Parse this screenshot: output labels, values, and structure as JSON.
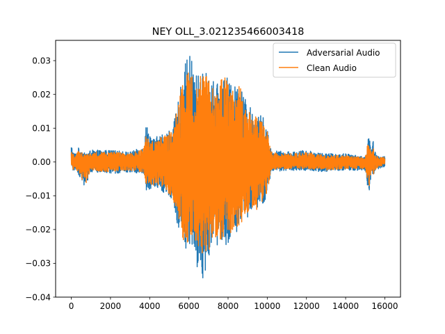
{
  "chart_data": {
    "type": "line",
    "title": "NEY OLL_3.021235466003418",
    "xlabel": "",
    "ylabel": "",
    "xlim": [
      -800,
      16800
    ],
    "ylim": [
      -0.04,
      0.036
    ],
    "xticks": [
      0,
      2000,
      4000,
      6000,
      8000,
      10000,
      12000,
      14000,
      16000
    ],
    "xtick_labels": [
      "0",
      "2000",
      "4000",
      "6000",
      "8000",
      "10000",
      "12000",
      "14000",
      "16000"
    ],
    "yticks": [
      -0.04,
      -0.03,
      -0.02,
      -0.01,
      0.0,
      0.01,
      0.02,
      0.03
    ],
    "ytick_labels": [
      "−0.04",
      "−0.03",
      "−0.02",
      "−0.01",
      "0.00",
      "0.01",
      "0.02",
      "0.03"
    ],
    "grid": false,
    "legend_position": "upper right",
    "num_samples": 16000,
    "series": [
      {
        "name": "Adversarial Audio",
        "color": "#1f77b4",
        "envelope": {
          "x": [
            0,
            100,
            200,
            400,
            700,
            1000,
            2000,
            3000,
            3700,
            3800,
            4200,
            4800,
            5200,
            5500,
            5800,
            6100,
            6400,
            6700,
            7000,
            7400,
            7800,
            8200,
            8600,
            9000,
            9400,
            9800,
            10000,
            10200,
            11000,
            12000,
            13000,
            14000,
            15000,
            15200,
            15300,
            15400,
            15500,
            15700,
            16000
          ],
          "upper": [
            0.0055,
            0.003,
            0.0025,
            0.0045,
            0.0025,
            0.0035,
            0.0035,
            0.003,
            0.0045,
            0.0115,
            0.007,
            0.009,
            0.0105,
            0.0195,
            0.029,
            0.0325,
            0.026,
            0.0265,
            0.027,
            0.0225,
            0.027,
            0.022,
            0.0235,
            0.017,
            0.0145,
            0.0135,
            0.01,
            0.0035,
            0.003,
            0.0035,
            0.0025,
            0.0025,
            0.0015,
            0.0085,
            0.003,
            0.0065,
            0.003,
            0.0015,
            0.002
          ],
          "lower": [
            -0.0015,
            -0.003,
            -0.002,
            -0.004,
            -0.0075,
            -0.003,
            -0.0035,
            -0.003,
            -0.0035,
            -0.0085,
            -0.0075,
            -0.0095,
            -0.012,
            -0.021,
            -0.0255,
            -0.027,
            -0.031,
            -0.0365,
            -0.028,
            -0.025,
            -0.025,
            -0.023,
            -0.02,
            -0.017,
            -0.015,
            -0.013,
            -0.01,
            -0.003,
            -0.0025,
            -0.0025,
            -0.003,
            -0.0025,
            -0.0025,
            -0.011,
            -0.0035,
            -0.0045,
            -0.003,
            -0.002,
            -0.0015
          ]
        }
      },
      {
        "name": "Clean Audio",
        "color": "#ff7f0e",
        "envelope": {
          "x": [
            0,
            100,
            200,
            400,
            700,
            1000,
            2000,
            3000,
            3700,
            3800,
            4200,
            4800,
            5200,
            5500,
            5800,
            6100,
            6400,
            6700,
            7000,
            7400,
            7800,
            8200,
            8600,
            9000,
            9400,
            9800,
            10000,
            10200,
            11000,
            12000,
            13000,
            14000,
            15000,
            15200,
            15300,
            15400,
            15500,
            15700,
            16000
          ],
          "upper": [
            0.003,
            0.0025,
            0.002,
            0.004,
            0.002,
            0.003,
            0.003,
            0.0025,
            0.004,
            0.0075,
            0.006,
            0.008,
            0.0095,
            0.0185,
            0.027,
            0.028,
            0.0255,
            0.0255,
            0.026,
            0.022,
            0.026,
            0.021,
            0.0225,
            0.016,
            0.0135,
            0.0125,
            0.0095,
            0.003,
            0.0025,
            0.003,
            0.002,
            0.002,
            0.0012,
            0.008,
            0.0025,
            0.0055,
            0.0025,
            0.0012,
            0.0015
          ],
          "lower": [
            -0.001,
            -0.0025,
            -0.0018,
            -0.0035,
            -0.007,
            -0.0025,
            -0.003,
            -0.0025,
            -0.003,
            -0.0075,
            -0.007,
            -0.009,
            -0.011,
            -0.02,
            -0.0245,
            -0.0255,
            -0.0265,
            -0.027,
            -0.026,
            -0.024,
            -0.024,
            -0.0215,
            -0.0195,
            -0.016,
            -0.0145,
            -0.0125,
            -0.0095,
            -0.0025,
            -0.002,
            -0.002,
            -0.0025,
            -0.002,
            -0.002,
            -0.0085,
            -0.003,
            -0.004,
            -0.0025,
            -0.0015,
            -0.001
          ]
        }
      }
    ]
  }
}
